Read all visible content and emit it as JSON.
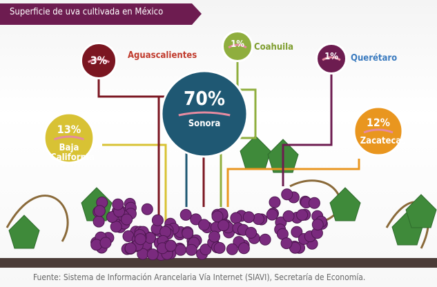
{
  "chart_data": {
    "type": "bubble",
    "title": "Superficie de uva cultivada en México",
    "categories": [
      "Sonora",
      "Baja California",
      "Zacatecas",
      "Aguascalientes",
      "Coahuila",
      "Querétaro"
    ],
    "values": [
      70,
      13,
      12,
      3,
      1,
      1
    ],
    "value_labels": [
      "70%",
      "13%",
      "12%",
      "3%",
      "1%",
      "1%"
    ],
    "colors": [
      "#1f5873",
      "#d8c234",
      "#e9961f",
      "#7b1621",
      "#8fae3e",
      "#6d1c50"
    ],
    "label_colors": [
      "#ffffff",
      "#ffffff",
      "#ffffff",
      "#c0392b",
      "#7f9e30",
      "#3b7bbf"
    ],
    "source": "Fuente: Sistema de Información Arancelaria Vía Internet (SIAVI), Secretaría de Economía."
  }
}
